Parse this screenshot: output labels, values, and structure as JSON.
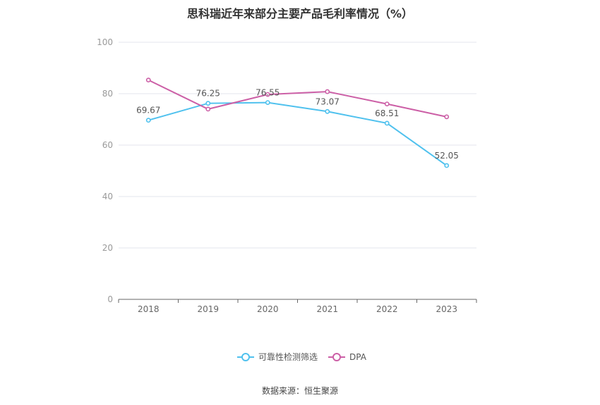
{
  "title": "思科瑞近年来部分主要产品毛利率情况（%）",
  "source": "数据来源：恒生聚源",
  "chart_data": {
    "type": "line",
    "title": "思科瑞近年来部分主要产品毛利率情况（%）",
    "xlabel": "",
    "ylabel": "",
    "categories": [
      "2018",
      "2019",
      "2020",
      "2021",
      "2022",
      "2023"
    ],
    "yticks": [
      "0",
      "20",
      "40",
      "60",
      "80",
      "100"
    ],
    "ylim": [
      0,
      100
    ],
    "grid": true,
    "legend_position": "bottom",
    "series": [
      {
        "name": "可靠性检测筛选",
        "color": "#4fc1ee",
        "values": [
          69.67,
          76.25,
          76.55,
          73.07,
          68.51,
          52.05
        ],
        "labels": [
          "69.67",
          "76.25",
          "76.55",
          "73.07",
          "68.51",
          "52.05"
        ]
      },
      {
        "name": "DPA",
        "color": "#cc5fa6",
        "values": [
          85.3,
          74.0,
          79.7,
          80.8,
          76.0,
          71.0
        ],
        "labels": []
      }
    ]
  }
}
